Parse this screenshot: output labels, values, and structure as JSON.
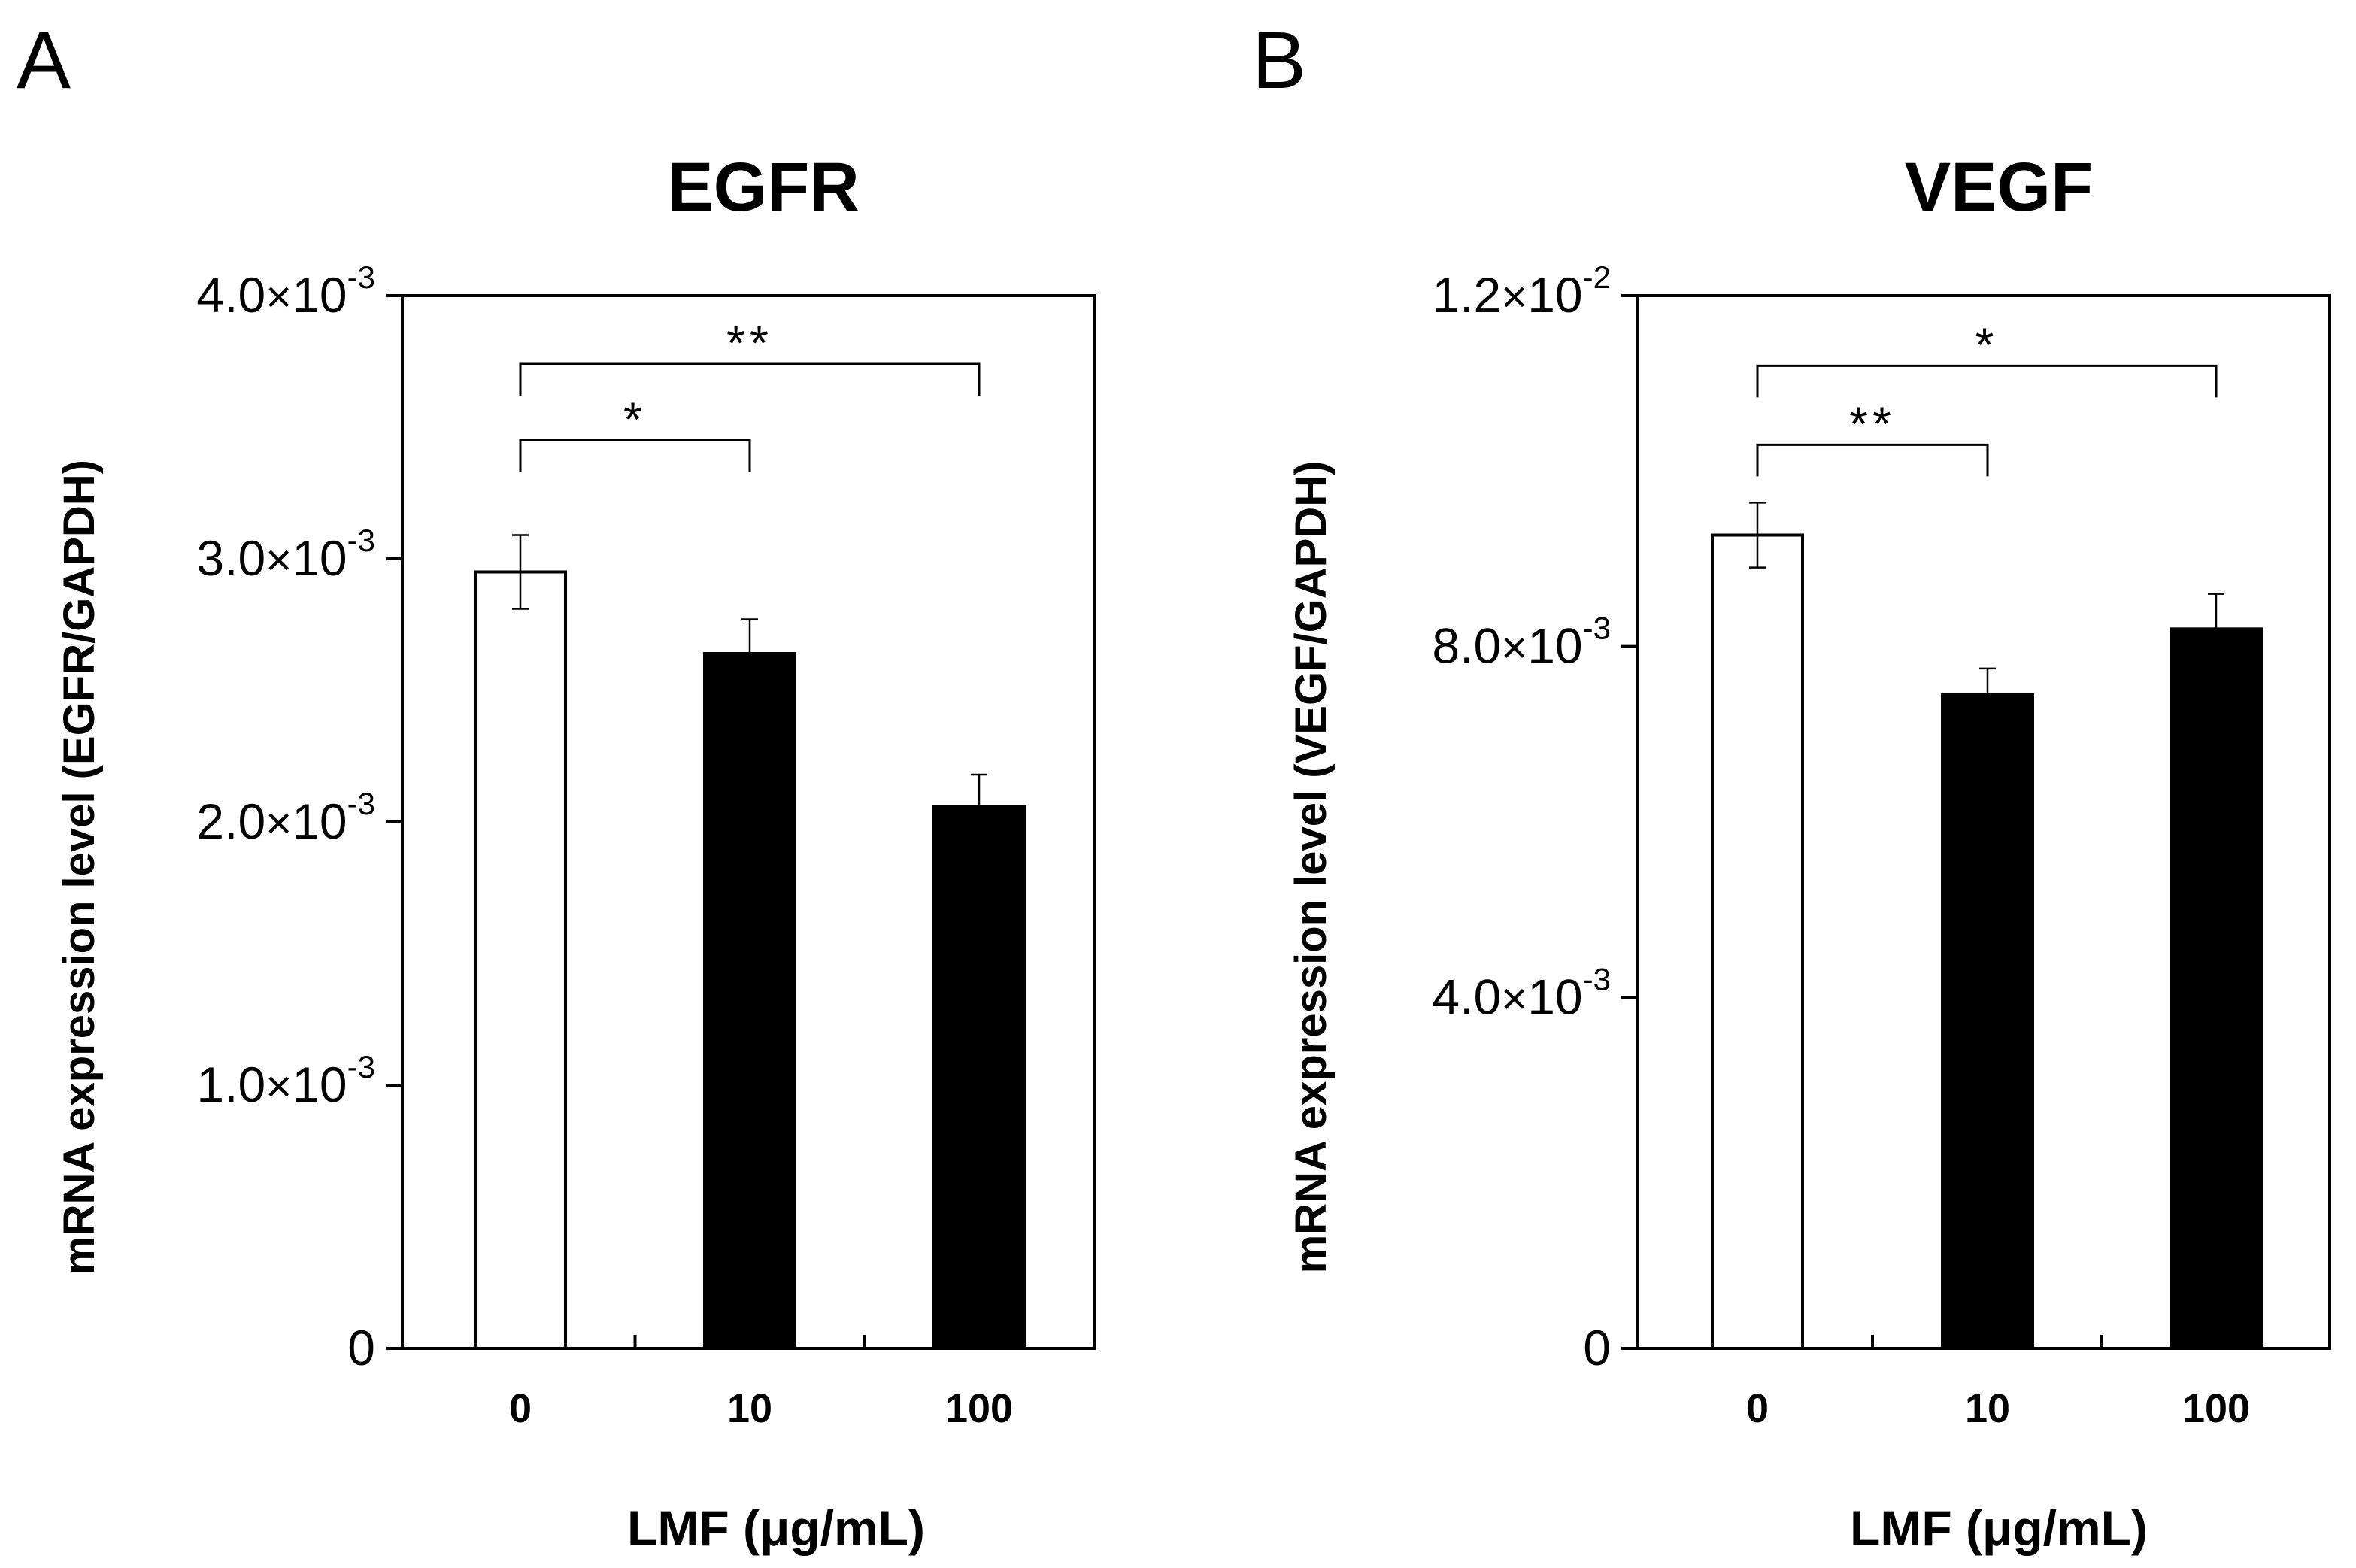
{
  "figure": {
    "units_label": "LMF (μg/mL)"
  },
  "chart_data": [
    {
      "type": "bar",
      "panel_label": "A",
      "title": "EGFR",
      "xlabel": "LMF (μg/mL)",
      "ylabel": "mRNA expression level (EGFR/GAPDH)",
      "categories": [
        "0",
        "10",
        "100"
      ],
      "values": [
        0.00295,
        0.00264,
        0.00206
      ],
      "errors": [
        0.00014,
        0.00013,
        0.00012
      ],
      "bar_fills": [
        "#ffffff",
        "#000000",
        "#000000"
      ],
      "ylim": [
        0,
        0.004
      ],
      "yticks": [
        {
          "value": 0,
          "mantissa": "0",
          "exponent": ""
        },
        {
          "value": 0.001,
          "mantissa": "1.0",
          "exponent": "-3"
        },
        {
          "value": 0.002,
          "mantissa": "2.0",
          "exponent": "-3"
        },
        {
          "value": 0.003,
          "mantissa": "3.0",
          "exponent": "-3"
        },
        {
          "value": 0.004,
          "mantissa": "4.0",
          "exponent": "-3"
        }
      ],
      "times_symbol": "×",
      "base": "10",
      "significance": [
        {
          "from": 0,
          "to": 1,
          "label": "*",
          "level": 0.00345
        },
        {
          "from": 0,
          "to": 2,
          "label": "**",
          "level": 0.00374
        }
      ]
    },
    {
      "type": "bar",
      "panel_label": "B",
      "title": "VEGF",
      "xlabel": "LMF (μg/mL)",
      "ylabel": "mRNA expression level (VEGF/GAPDH)",
      "categories": [
        "0",
        "10",
        "100"
      ],
      "values": [
        0.00927,
        0.00745,
        0.0082
      ],
      "errors": [
        0.00037,
        0.0003,
        0.0004
      ],
      "bar_fills": [
        "#ffffff",
        "#000000",
        "#000000"
      ],
      "ylim": [
        0,
        0.012
      ],
      "yticks": [
        {
          "value": 0,
          "mantissa": "0",
          "exponent": ""
        },
        {
          "value": 0.004,
          "mantissa": "4.0",
          "exponent": "-3"
        },
        {
          "value": 0.008,
          "mantissa": "8.0",
          "exponent": "-3"
        },
        {
          "value": 0.012,
          "mantissa": "1.2",
          "exponent": "-2"
        }
      ],
      "times_symbol": "×",
      "base": "10",
      "significance": [
        {
          "from": 0,
          "to": 1,
          "label": "**",
          "level": 0.0103
        },
        {
          "from": 0,
          "to": 2,
          "label": "*",
          "level": 0.0112
        }
      ]
    }
  ]
}
